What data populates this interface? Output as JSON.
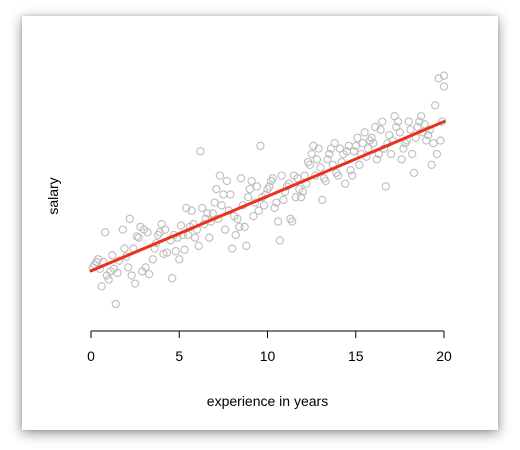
{
  "chart_data": {
    "type": "scatter",
    "title": "",
    "xlabel": "experience in years",
    "ylabel": "salary",
    "xlim": [
      0,
      20
    ],
    "ylim": [
      0,
      1
    ],
    "x_ticks": [
      "0",
      "5",
      "10",
      "15",
      "20"
    ],
    "y_ticks_shown": false,
    "grid": false,
    "legend": "none",
    "colors": {
      "points": "#bdbdbd",
      "fit_line": "#e8321a"
    },
    "fit_line": {
      "x": [
        0,
        20
      ],
      "y": [
        0.167,
        0.72
      ]
    },
    "points": [
      [
        0.1,
        0.18
      ],
      [
        0.2,
        0.19
      ],
      [
        0.3,
        0.2
      ],
      [
        0.4,
        0.21
      ],
      [
        0.5,
        0.175
      ],
      [
        0.6,
        0.11
      ],
      [
        0.7,
        0.2
      ],
      [
        0.8,
        0.31
      ],
      [
        0.9,
        0.15
      ],
      [
        1.0,
        0.135
      ],
      [
        1.1,
        0.165
      ],
      [
        1.2,
        0.225
      ],
      [
        1.3,
        0.175
      ],
      [
        1.4,
        0.045
      ],
      [
        1.5,
        0.16
      ],
      [
        1.6,
        0.205
      ],
      [
        1.8,
        0.32
      ],
      [
        1.9,
        0.25
      ],
      [
        2.0,
        0.22
      ],
      [
        2.1,
        0.18
      ],
      [
        2.2,
        0.36
      ],
      [
        2.3,
        0.15
      ],
      [
        2.4,
        0.25
      ],
      [
        2.5,
        0.12
      ],
      [
        2.6,
        0.295
      ],
      [
        2.7,
        0.29
      ],
      [
        2.8,
        0.33
      ],
      [
        2.9,
        0.165
      ],
      [
        3.0,
        0.32
      ],
      [
        3.1,
        0.18
      ],
      [
        3.2,
        0.31
      ],
      [
        3.3,
        0.155
      ],
      [
        3.5,
        0.21
      ],
      [
        3.6,
        0.25
      ],
      [
        3.7,
        0.27
      ],
      [
        3.8,
        0.3
      ],
      [
        3.9,
        0.31
      ],
      [
        4.0,
        0.34
      ],
      [
        4.1,
        0.23
      ],
      [
        4.2,
        0.32
      ],
      [
        4.3,
        0.235
      ],
      [
        4.5,
        0.28
      ],
      [
        4.6,
        0.14
      ],
      [
        4.7,
        0.3
      ],
      [
        4.8,
        0.24
      ],
      [
        4.9,
        0.29
      ],
      [
        5.0,
        0.21
      ],
      [
        5.1,
        0.335
      ],
      [
        5.2,
        0.3
      ],
      [
        5.3,
        0.245
      ],
      [
        5.4,
        0.4
      ],
      [
        5.5,
        0.3
      ],
      [
        5.6,
        0.33
      ],
      [
        5.7,
        0.39
      ],
      [
        5.8,
        0.34
      ],
      [
        5.9,
        0.29
      ],
      [
        6.0,
        0.32
      ],
      [
        6.1,
        0.26
      ],
      [
        6.2,
        0.61
      ],
      [
        6.3,
        0.4
      ],
      [
        6.4,
        0.34
      ],
      [
        6.5,
        0.36
      ],
      [
        6.6,
        0.38
      ],
      [
        6.7,
        0.29
      ],
      [
        6.8,
        0.35
      ],
      [
        6.9,
        0.38
      ],
      [
        7.0,
        0.42
      ],
      [
        7.1,
        0.47
      ],
      [
        7.2,
        0.36
      ],
      [
        7.3,
        0.52
      ],
      [
        7.4,
        0.41
      ],
      [
        7.5,
        0.45
      ],
      [
        7.6,
        0.32
      ],
      [
        7.7,
        0.5
      ],
      [
        7.8,
        0.39
      ],
      [
        7.9,
        0.45
      ],
      [
        8.0,
        0.25
      ],
      [
        8.1,
        0.37
      ],
      [
        8.2,
        0.3
      ],
      [
        8.3,
        0.36
      ],
      [
        8.4,
        0.33
      ],
      [
        8.5,
        0.51
      ],
      [
        8.6,
        0.41
      ],
      [
        8.7,
        0.33
      ],
      [
        8.8,
        0.26
      ],
      [
        8.9,
        0.44
      ],
      [
        9.0,
        0.47
      ],
      [
        9.1,
        0.5
      ],
      [
        9.2,
        0.37
      ],
      [
        9.3,
        0.42
      ],
      [
        9.4,
        0.48
      ],
      [
        9.5,
        0.39
      ],
      [
        9.6,
        0.63
      ],
      [
        9.7,
        0.44
      ],
      [
        9.8,
        0.41
      ],
      [
        9.9,
        0.45
      ],
      [
        10.0,
        0.47
      ],
      [
        10.1,
        0.48
      ],
      [
        10.2,
        0.5
      ],
      [
        10.3,
        0.51
      ],
      [
        10.4,
        0.4
      ],
      [
        10.5,
        0.42
      ],
      [
        10.6,
        0.35
      ],
      [
        10.7,
        0.28
      ],
      [
        10.8,
        0.52
      ],
      [
        10.9,
        0.43
      ],
      [
        11.0,
        0.46
      ],
      [
        11.1,
        0.48
      ],
      [
        11.2,
        0.49
      ],
      [
        11.3,
        0.36
      ],
      [
        11.4,
        0.35
      ],
      [
        11.5,
        0.52
      ],
      [
        11.6,
        0.44
      ],
      [
        11.7,
        0.51
      ],
      [
        11.8,
        0.47
      ],
      [
        11.9,
        0.44
      ],
      [
        12.0,
        0.46
      ],
      [
        12.1,
        0.52
      ],
      [
        12.2,
        0.49
      ],
      [
        12.3,
        0.57
      ],
      [
        12.4,
        0.56
      ],
      [
        12.5,
        0.6
      ],
      [
        12.6,
        0.63
      ],
      [
        12.7,
        0.52
      ],
      [
        12.8,
        0.58
      ],
      [
        12.9,
        0.62
      ],
      [
        13.0,
        0.55
      ],
      [
        13.1,
        0.43
      ],
      [
        13.2,
        0.51
      ],
      [
        13.3,
        0.5
      ],
      [
        13.4,
        0.58
      ],
      [
        13.5,
        0.6
      ],
      [
        13.6,
        0.62
      ],
      [
        13.7,
        0.56
      ],
      [
        13.8,
        0.64
      ],
      [
        13.9,
        0.53
      ],
      [
        14.0,
        0.52
      ],
      [
        14.1,
        0.62
      ],
      [
        14.2,
        0.57
      ],
      [
        14.3,
        0.6
      ],
      [
        14.4,
        0.49
      ],
      [
        14.5,
        0.61
      ],
      [
        14.6,
        0.63
      ],
      [
        14.7,
        0.54
      ],
      [
        14.8,
        0.52
      ],
      [
        14.9,
        0.61
      ],
      [
        15.0,
        0.63
      ],
      [
        15.1,
        0.66
      ],
      [
        15.2,
        0.56
      ],
      [
        15.3,
        0.6
      ],
      [
        15.4,
        0.64
      ],
      [
        15.5,
        0.68
      ],
      [
        15.6,
        0.59
      ],
      [
        15.7,
        0.62
      ],
      [
        15.8,
        0.65
      ],
      [
        15.9,
        0.66
      ],
      [
        16.0,
        0.64
      ],
      [
        16.1,
        0.7
      ],
      [
        16.2,
        0.58
      ],
      [
        16.3,
        0.6
      ],
      [
        16.4,
        0.69
      ],
      [
        16.5,
        0.72
      ],
      [
        16.6,
        0.62
      ],
      [
        16.7,
        0.48
      ],
      [
        16.8,
        0.64
      ],
      [
        16.9,
        0.67
      ],
      [
        17.0,
        0.6
      ],
      [
        17.1,
        0.65
      ],
      [
        17.2,
        0.74
      ],
      [
        17.3,
        0.7
      ],
      [
        17.4,
        0.72
      ],
      [
        17.5,
        0.68
      ],
      [
        17.6,
        0.58
      ],
      [
        17.7,
        0.62
      ],
      [
        17.8,
        0.64
      ],
      [
        17.9,
        0.65
      ],
      [
        18.0,
        0.72
      ],
      [
        18.1,
        0.69
      ],
      [
        18.2,
        0.6
      ],
      [
        18.3,
        0.53
      ],
      [
        18.4,
        0.66
      ],
      [
        18.5,
        0.7
      ],
      [
        18.6,
        0.72
      ],
      [
        18.7,
        0.74
      ],
      [
        18.8,
        0.68
      ],
      [
        18.9,
        0.71
      ],
      [
        19.0,
        0.65
      ],
      [
        19.1,
        0.67
      ],
      [
        19.2,
        0.69
      ],
      [
        19.3,
        0.56
      ],
      [
        19.4,
        0.64
      ],
      [
        19.5,
        0.78
      ],
      [
        19.6,
        0.6
      ],
      [
        19.7,
        0.88
      ],
      [
        19.8,
        0.65
      ],
      [
        19.9,
        0.72
      ],
      [
        20.0,
        0.89
      ],
      [
        20.0,
        0.85
      ]
    ]
  }
}
